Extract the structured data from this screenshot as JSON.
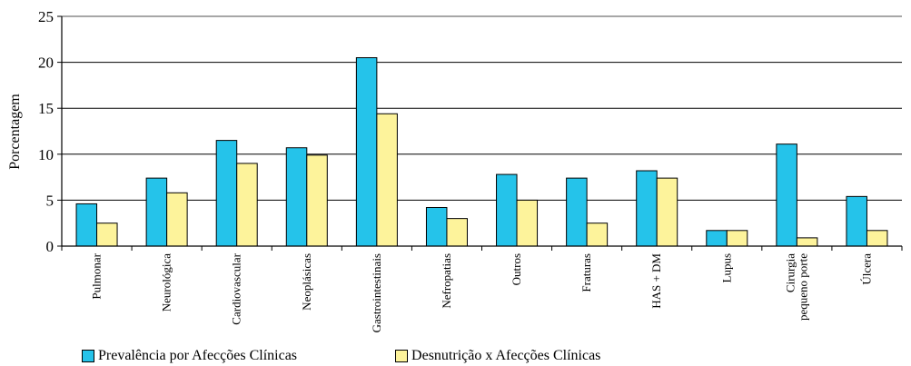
{
  "chart_data": {
    "type": "bar",
    "ylabel": "Porcentagem",
    "xlabel": "",
    "ylim": [
      0,
      25
    ],
    "yticks": [
      "0",
      "5",
      "10",
      "15",
      "20",
      "25"
    ],
    "grid": true,
    "legend_position": "bottom",
    "categories": [
      [
        "Pulmonar"
      ],
      [
        "Neurológica"
      ],
      [
        "Cardiovascular"
      ],
      [
        "Neoplásicas"
      ],
      [
        "Gastrointestinais"
      ],
      [
        "Nefropatias"
      ],
      [
        "Outros"
      ],
      [
        "Fraturas"
      ],
      [
        "HAS + DM"
      ],
      [
        "Lupus"
      ],
      [
        "Cirurgia",
        "pequeno porte"
      ],
      [
        "Úlcera"
      ]
    ],
    "series": [
      {
        "name": "Prevalência por Afecções Clínicas",
        "color": "#25c3ea",
        "values": [
          4.6,
          7.4,
          11.5,
          10.7,
          20.5,
          4.2,
          7.8,
          7.4,
          8.2,
          1.7,
          11.1,
          5.4
        ]
      },
      {
        "name": "Desnutrição x Afecções Clínicas",
        "color": "#fdf39b",
        "values": [
          2.5,
          5.8,
          9.0,
          9.9,
          14.4,
          3.0,
          5.0,
          2.5,
          7.4,
          1.7,
          0.9,
          1.7
        ]
      }
    ]
  }
}
